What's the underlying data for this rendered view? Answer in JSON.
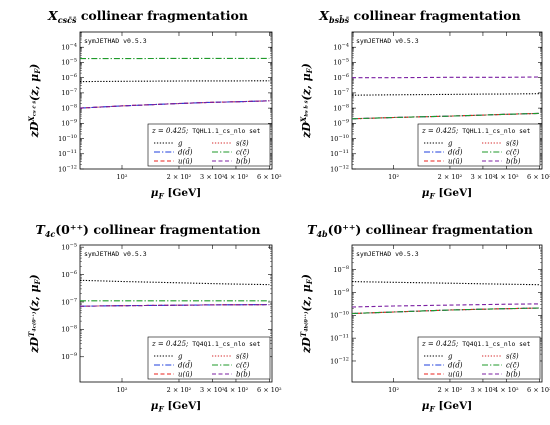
{
  "colors": {
    "g": "#000000",
    "s": "#d62728",
    "d": "#1f3fdc",
    "c": "#1f9a2a",
    "u": "#e8201b",
    "b": "#7b1fa2"
  },
  "chart_data": [
    {
      "type": "line",
      "title": "X_{cs c̄ s̄} collinear fragmentation",
      "title_main": "X",
      "title_sub": "csc̄s̄",
      "title_rest": " collinear fragmentation",
      "ylabel": "z D_i^{X_{cs c̄ s̄}}(z, μ_F)",
      "ylabel_sup": "X",
      "ylabel_supsub": "cs c̄ s̄",
      "xlabel": "μ_F [GeV]",
      "xscale": "log",
      "yscale": "log",
      "xlim": [
        60,
        620
      ],
      "ylim": [
        1e-12,
        0.001
      ],
      "yticks": [
        -12,
        -11,
        -10,
        -9,
        -8,
        -7,
        -6,
        -5,
        -4
      ],
      "xticks": [
        {
          "v": 100,
          "label": "10²"
        },
        {
          "v": 200,
          "label": "2 × 10²"
        },
        {
          "v": 300,
          "label": "3 × 10²"
        },
        {
          "v": 400,
          "label": "4 × 10²"
        },
        {
          "v": 600,
          "label": "6 × 10²"
        }
      ],
      "version": "symJETHAD v0.5.3",
      "legend_header": "z = 0.425;",
      "legend_set": "TQHL1.1_cs_nlo set",
      "x": [
        60,
        100,
        200,
        300,
        400,
        600
      ],
      "series": [
        {
          "key": "g",
          "name": "g",
          "values": [
            5.5e-07,
            5.8e-07,
            6e-07,
            6.1e-07,
            6.15e-07,
            6.2e-07
          ],
          "dash": "1.3,1.6"
        },
        {
          "key": "s",
          "name": "s(s̄)",
          "values": [
            1e-08,
            1.4e-08,
            2e-08,
            2.4e-08,
            2.6e-08,
            3e-08
          ],
          "dash": "1.3,1.6"
        },
        {
          "key": "d",
          "name": "d(d̄)",
          "values": [
            1e-08,
            1.4e-08,
            2e-08,
            2.4e-08,
            2.6e-08,
            3e-08
          ],
          "dash": "6,2,1.3,2"
        },
        {
          "key": "c",
          "name": "c(c̄)",
          "values": [
            1.8e-05,
            1.8e-05,
            1.85e-05,
            1.85e-05,
            1.85e-05,
            1.85e-05
          ],
          "dash": "6,2,1.3,2"
        },
        {
          "key": "u",
          "name": "u(ū)",
          "values": [
            1e-08,
            1.4e-08,
            2e-08,
            2.4e-08,
            2.6e-08,
            3e-08
          ],
          "dash": "4,2.5"
        },
        {
          "key": "b",
          "name": "b(b̄)",
          "values": [
            1e-08,
            1.4e-08,
            2e-08,
            2.4e-08,
            2.6e-08,
            3e-08
          ],
          "dash": "4,2.5"
        }
      ]
    },
    {
      "type": "line",
      "title": "X_{bs b̄ s̄} collinear fragmentation",
      "title_main": "X",
      "title_sub": "bsb̄s̄",
      "title_rest": " collinear fragmentation",
      "ylabel": "z D_i^{X_{bs b̄ s̄}}(z, μ_F)",
      "ylabel_sup": "X",
      "ylabel_supsub": "bs b̄ s̄",
      "xlabel": "μ_F [GeV]",
      "xscale": "log",
      "yscale": "log",
      "xlim": [
        60,
        620
      ],
      "ylim": [
        1e-12,
        0.001
      ],
      "yticks": [
        -12,
        -11,
        -10,
        -9,
        -8,
        -7,
        -6,
        -5,
        -4
      ],
      "xticks": [
        {
          "v": 100,
          "label": "10²"
        },
        {
          "v": 200,
          "label": "2 × 10²"
        },
        {
          "v": 300,
          "label": "3 × 10²"
        },
        {
          "v": 400,
          "label": "4 × 10²"
        },
        {
          "v": 600,
          "label": "6 × 10²"
        }
      ],
      "version": "symJETHAD v0.5.3",
      "legend_header": "z = 0.425;",
      "legend_set": "TQHL1.1_cs_nlo set",
      "x": [
        60,
        100,
        200,
        300,
        400,
        600
      ],
      "series": [
        {
          "key": "g",
          "name": "g",
          "values": [
            7e-08,
            7.5e-08,
            8e-08,
            8.3e-08,
            8.5e-08,
            8.8e-08
          ],
          "dash": "1.3,1.6"
        },
        {
          "key": "s",
          "name": "s(s̄)",
          "values": [
            2e-09,
            2.4e-09,
            3e-09,
            3.5e-09,
            3.9e-09,
            4.5e-09
          ],
          "dash": "1.3,1.6"
        },
        {
          "key": "d",
          "name": "d(d̄)",
          "values": [
            2e-09,
            2.4e-09,
            3e-09,
            3.5e-09,
            3.9e-09,
            4.5e-09
          ],
          "dash": "6,2,1.3,2"
        },
        {
          "key": "c",
          "name": "c(c̄)",
          "values": [
            2e-09,
            2.4e-09,
            3e-09,
            3.5e-09,
            3.9e-09,
            4.5e-09
          ],
          "dash": "6,2,1.3,2"
        },
        {
          "key": "u",
          "name": "u(ū)",
          "values": [
            2e-09,
            2.4e-09,
            3e-09,
            3.5e-09,
            3.9e-09,
            4.5e-09
          ],
          "dash": "4,2.5"
        },
        {
          "key": "b",
          "name": "b(b̄)",
          "values": [
            1e-06,
            1e-06,
            1.05e-06,
            1.05e-06,
            1.05e-06,
            1.1e-06
          ],
          "dash": "4,2.5"
        }
      ]
    },
    {
      "type": "line",
      "title": "T_{4c}(0⁺⁺) collinear fragmentation",
      "title_main": "T",
      "title_sub": "4c",
      "title_rest": "(0⁺⁺) collinear fragmentation",
      "ylabel": "z D_i^{T_{4c}(0⁺⁺)}(z, μ_F)",
      "ylabel_sup": "T",
      "ylabel_supsub": "4c(0⁺⁺)",
      "xlabel": "μ_F [GeV]",
      "xscale": "log",
      "yscale": "log",
      "xlim": [
        60,
        620
      ],
      "ylim": [
        1.2e-10,
        1.2e-05
      ],
      "yticks": [
        -9,
        -8,
        -7,
        -6,
        -5
      ],
      "xticks": [
        {
          "v": 100,
          "label": "10²"
        },
        {
          "v": 200,
          "label": "2 × 10²"
        },
        {
          "v": 300,
          "label": "3 × 10²"
        },
        {
          "v": 400,
          "label": "4 × 10²"
        },
        {
          "v": 600,
          "label": "6 × 10²"
        }
      ],
      "version": "symJETHAD v0.5.3",
      "legend_header": "z = 0.425;",
      "legend_set": "TQ4Q1.1_cs_nlo set",
      "x": [
        60,
        100,
        200,
        300,
        400,
        600
      ],
      "series": [
        {
          "key": "g",
          "name": "g",
          "values": [
            6.2e-07,
            5.6e-07,
            5e-07,
            4.7e-07,
            4.5e-07,
            4.3e-07
          ],
          "dash": "1.3,1.6"
        },
        {
          "key": "s",
          "name": "s(s̄)",
          "values": [
            7e-08,
            7.3e-08,
            7.6e-08,
            7.8e-08,
            7.9e-08,
            8e-08
          ],
          "dash": "1.3,1.6"
        },
        {
          "key": "d",
          "name": "d(d̄)",
          "values": [
            7e-08,
            7.3e-08,
            7.6e-08,
            7.8e-08,
            7.9e-08,
            8e-08
          ],
          "dash": "6,2,1.3,2"
        },
        {
          "key": "c",
          "name": "c(c̄)",
          "values": [
            1.1e-07,
            1.1e-07,
            1.1e-07,
            1.1e-07,
            1.1e-07,
            1.1e-07
          ],
          "dash": "6,2,1.3,2"
        },
        {
          "key": "u",
          "name": "u(ū)",
          "values": [
            7e-08,
            7.3e-08,
            7.6e-08,
            7.8e-08,
            7.9e-08,
            8e-08
          ],
          "dash": "4,2.5"
        },
        {
          "key": "b",
          "name": "b(b̄)",
          "values": [
            7e-08,
            7.3e-08,
            7.6e-08,
            7.8e-08,
            7.9e-08,
            8e-08
          ],
          "dash": "4,2.5"
        }
      ]
    },
    {
      "type": "line",
      "title": "T_{4b}(0⁺⁺) collinear fragmentation",
      "title_main": "T",
      "title_sub": "4b",
      "title_rest": "(0⁺⁺) collinear fragmentation",
      "ylabel": "z D_i^{T_{4b}(0⁺⁺)}(z, μ_F)",
      "ylabel_sup": "T",
      "ylabel_supsub": "4b(0⁺⁺)",
      "xlabel": "μ_F [GeV]",
      "xscale": "log",
      "yscale": "log",
      "xlim": [
        60,
        620
      ],
      "ylim": [
        1.2e-13,
        1.2e-07
      ],
      "yticks": [
        -12,
        -11,
        -10,
        -9,
        -8
      ],
      "xticks": [
        {
          "v": 100,
          "label": "10²"
        },
        {
          "v": 200,
          "label": "2 × 10²"
        },
        {
          "v": 300,
          "label": "3 × 10²"
        },
        {
          "v": 400,
          "label": "4 × 10²"
        },
        {
          "v": 600,
          "label": "6 × 10²"
        }
      ],
      "version": "symJETHAD v0.5.3",
      "legend_header": "z = 0.425;",
      "legend_set": "TQ4Q1.1_cs_nlo set",
      "x": [
        60,
        100,
        200,
        300,
        400,
        600
      ],
      "series": [
        {
          "key": "g",
          "name": "g",
          "values": [
            3e-09,
            2.8e-09,
            2.55e-09,
            2.4e-09,
            2.3e-09,
            2.2e-09
          ],
          "dash": "1.3,1.6"
        },
        {
          "key": "s",
          "name": "s(s̄)",
          "values": [
            1.2e-10,
            1.4e-10,
            1.7e-10,
            1.85e-10,
            1.95e-10,
            2.1e-10
          ],
          "dash": "1.3,1.6"
        },
        {
          "key": "d",
          "name": "d(d̄)",
          "values": [
            1.2e-10,
            1.4e-10,
            1.7e-10,
            1.85e-10,
            1.95e-10,
            2.1e-10
          ],
          "dash": "6,2,1.3,2"
        },
        {
          "key": "c",
          "name": "c(c̄)",
          "values": [
            1.2e-10,
            1.4e-10,
            1.7e-10,
            1.85e-10,
            1.95e-10,
            2.1e-10
          ],
          "dash": "6,2,1.3,2"
        },
        {
          "key": "u",
          "name": "u(ū)",
          "values": [
            1.2e-10,
            1.4e-10,
            1.7e-10,
            1.85e-10,
            1.95e-10,
            2.1e-10
          ],
          "dash": "4,2.5"
        },
        {
          "key": "b",
          "name": "b(b̄)",
          "values": [
            2.3e-10,
            2.55e-10,
            2.8e-10,
            2.95e-10,
            3.05e-10,
            3.15e-10
          ],
          "dash": "4,2.5"
        }
      ]
    }
  ]
}
